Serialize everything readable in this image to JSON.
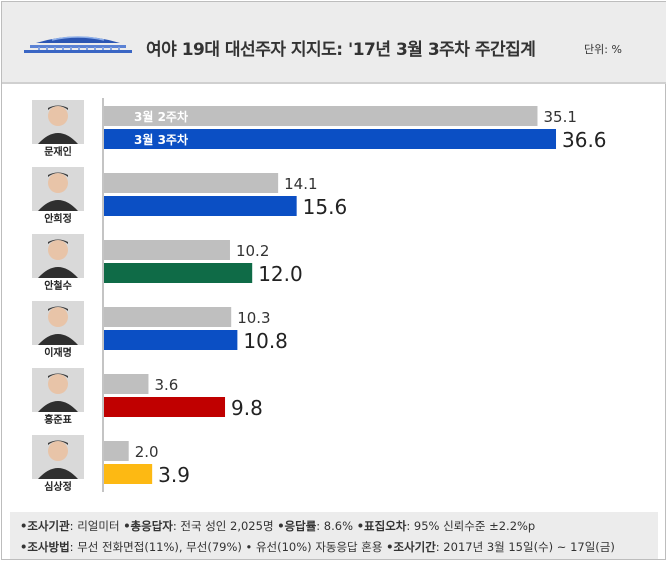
{
  "title": "여야 19대 대선주자 지지도: '17년 3월 3주차 주간집계",
  "unit": "단위: %",
  "legend_labels": [
    "3월 2주차",
    "3월 3주차"
  ],
  "chart_data": {
    "type": "bar",
    "orientation": "horizontal",
    "title": "여야 19대 대선주자 지지도: '17년 3월 3주차 주간집계",
    "unit": "단위: %",
    "categories": [
      "문재인",
      "안희정",
      "안철수",
      "이재명",
      "홍준표",
      "심상정"
    ],
    "series": [
      {
        "name": "3월 2주차",
        "values": [
          35.1,
          14.1,
          10.2,
          10.3,
          3.6,
          2.0
        ]
      },
      {
        "name": "3월 3주차",
        "values": [
          36.6,
          15.6,
          12.0,
          10.8,
          9.8,
          3.9
        ]
      }
    ],
    "colors": {
      "prev": "#bfbfbf",
      "current": [
        "#0b4fc4",
        "#0b4fc4",
        "#0f6b47",
        "#0b4fc4",
        "#c00000",
        "#fdb913"
      ]
    },
    "grid": false
  },
  "footer": {
    "line1": [
      {
        "label": "•조사기관",
        "value": ": 리얼미터 "
      },
      {
        "label": "•총응답자",
        "value": ": 전국 성인 2,025명 "
      },
      {
        "label": "•응답률",
        "value": ": 8.6% "
      },
      {
        "label": "•표집오차",
        "value": ": 95% 신뢰수준 ±2.2%p"
      }
    ],
    "line2": [
      {
        "label": "•조사방법",
        "value": ": 무선 전화면접(11%), 무선(79%) • 유선(10%) 자동응답 혼용 "
      },
      {
        "label": "•조사기간",
        "value": ": 2017년 3월 15일(수) ~ 17일(금)"
      }
    ]
  }
}
